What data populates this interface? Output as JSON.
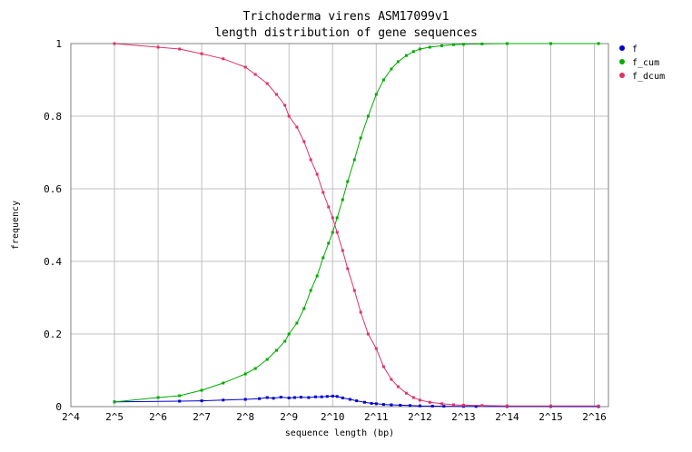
{
  "chart_data": {
    "type": "line",
    "title": [
      "Trichoderma virens ASM17099v1",
      "length distribution of gene sequences"
    ],
    "xlabel": "sequence length (bp)",
    "ylabel": "frequency",
    "x_scale": "log2",
    "xlim": [
      16,
      81920
    ],
    "ylim": [
      0,
      1
    ],
    "x_ticks": [
      {
        "value": 16,
        "label": "2^4"
      },
      {
        "value": 32,
        "label": "2^5"
      },
      {
        "value": 64,
        "label": "2^6"
      },
      {
        "value": 128,
        "label": "2^7"
      },
      {
        "value": 256,
        "label": "2^8"
      },
      {
        "value": 512,
        "label": "2^9"
      },
      {
        "value": 1024,
        "label": "2^10"
      },
      {
        "value": 2048,
        "label": "2^11"
      },
      {
        "value": 4096,
        "label": "2^12"
      },
      {
        "value": 8192,
        "label": "2^13"
      },
      {
        "value": 16384,
        "label": "2^14"
      },
      {
        "value": 32768,
        "label": "2^15"
      },
      {
        "value": 65536,
        "label": "2^16"
      }
    ],
    "y_ticks": [
      {
        "value": 0,
        "label": "0"
      },
      {
        "value": 0.2,
        "label": "0.2"
      },
      {
        "value": 0.4,
        "label": "0.4"
      },
      {
        "value": 0.6,
        "label": "0.6"
      },
      {
        "value": 0.8,
        "label": "0.8"
      },
      {
        "value": 1,
        "label": "1"
      }
    ],
    "grid": true,
    "legend_position": "right",
    "series": [
      {
        "name": "f",
        "color": "#0000cc",
        "points": [
          [
            32,
            0.013
          ],
          [
            90,
            0.015
          ],
          [
            128,
            0.016
          ],
          [
            180,
            0.018
          ],
          [
            256,
            0.02
          ],
          [
            320,
            0.022
          ],
          [
            362,
            0.025
          ],
          [
            400,
            0.023
          ],
          [
            450,
            0.026
          ],
          [
            512,
            0.024
          ],
          [
            560,
            0.025
          ],
          [
            620,
            0.026
          ],
          [
            700,
            0.025
          ],
          [
            780,
            0.027
          ],
          [
            860,
            0.027
          ],
          [
            940,
            0.028
          ],
          [
            1024,
            0.029
          ],
          [
            1100,
            0.028
          ],
          [
            1200,
            0.024
          ],
          [
            1350,
            0.02
          ],
          [
            1500,
            0.016
          ],
          [
            1700,
            0.012
          ],
          [
            1900,
            0.009
          ],
          [
            2048,
            0.008
          ],
          [
            2300,
            0.006
          ],
          [
            2600,
            0.005
          ],
          [
            3000,
            0.004
          ],
          [
            3500,
            0.003
          ],
          [
            4096,
            0.002
          ],
          [
            5000,
            0.0015
          ],
          [
            6000,
            0.001
          ],
          [
            8192,
            0.0007
          ],
          [
            10000,
            0.0005
          ],
          [
            16384,
            0.0003
          ],
          [
            32768,
            0.0002
          ],
          [
            70000,
            0.0001
          ]
        ]
      },
      {
        "name": "f_cum",
        "color": "#00aa00",
        "points": [
          [
            32,
            0.013
          ],
          [
            64,
            0.025
          ],
          [
            90,
            0.03
          ],
          [
            128,
            0.045
          ],
          [
            180,
            0.065
          ],
          [
            256,
            0.09
          ],
          [
            300,
            0.105
          ],
          [
            362,
            0.13
          ],
          [
            420,
            0.155
          ],
          [
            480,
            0.18
          ],
          [
            512,
            0.2
          ],
          [
            580,
            0.23
          ],
          [
            650,
            0.27
          ],
          [
            724,
            0.32
          ],
          [
            800,
            0.36
          ],
          [
            880,
            0.41
          ],
          [
            960,
            0.45
          ],
          [
            1024,
            0.48
          ],
          [
            1100,
            0.52
          ],
          [
            1200,
            0.57
          ],
          [
            1300,
            0.62
          ],
          [
            1448,
            0.68
          ],
          [
            1600,
            0.74
          ],
          [
            1800,
            0.8
          ],
          [
            2048,
            0.86
          ],
          [
            2300,
            0.9
          ],
          [
            2600,
            0.93
          ],
          [
            2900,
            0.95
          ],
          [
            3300,
            0.967
          ],
          [
            3700,
            0.978
          ],
          [
            4096,
            0.985
          ],
          [
            4800,
            0.99
          ],
          [
            5800,
            0.994
          ],
          [
            7000,
            0.997
          ],
          [
            8192,
            0.998
          ],
          [
            11000,
            0.999
          ],
          [
            16384,
            1
          ],
          [
            32768,
            1
          ],
          [
            70000,
            1
          ]
        ]
      },
      {
        "name": "f_dcum",
        "color": "#dd3366",
        "points": [
          [
            32,
            1
          ],
          [
            64,
            0.99
          ],
          [
            90,
            0.985
          ],
          [
            128,
            0.972
          ],
          [
            180,
            0.958
          ],
          [
            256,
            0.935
          ],
          [
            300,
            0.915
          ],
          [
            362,
            0.89
          ],
          [
            420,
            0.86
          ],
          [
            480,
            0.83
          ],
          [
            512,
            0.8
          ],
          [
            580,
            0.77
          ],
          [
            650,
            0.73
          ],
          [
            724,
            0.68
          ],
          [
            800,
            0.64
          ],
          [
            880,
            0.59
          ],
          [
            960,
            0.55
          ],
          [
            1024,
            0.52
          ],
          [
            1100,
            0.48
          ],
          [
            1200,
            0.43
          ],
          [
            1300,
            0.38
          ],
          [
            1448,
            0.32
          ],
          [
            1600,
            0.26
          ],
          [
            1800,
            0.2
          ],
          [
            2048,
            0.16
          ],
          [
            2300,
            0.11
          ],
          [
            2600,
            0.075
          ],
          [
            2900,
            0.055
          ],
          [
            3300,
            0.037
          ],
          [
            3700,
            0.025
          ],
          [
            4096,
            0.018
          ],
          [
            4800,
            0.012
          ],
          [
            5800,
            0.008
          ],
          [
            7000,
            0.005
          ],
          [
            8192,
            0.004
          ],
          [
            11000,
            0.003
          ],
          [
            16384,
            0.002
          ],
          [
            32768,
            0.002
          ],
          [
            70000,
            0.002
          ]
        ]
      }
    ]
  }
}
